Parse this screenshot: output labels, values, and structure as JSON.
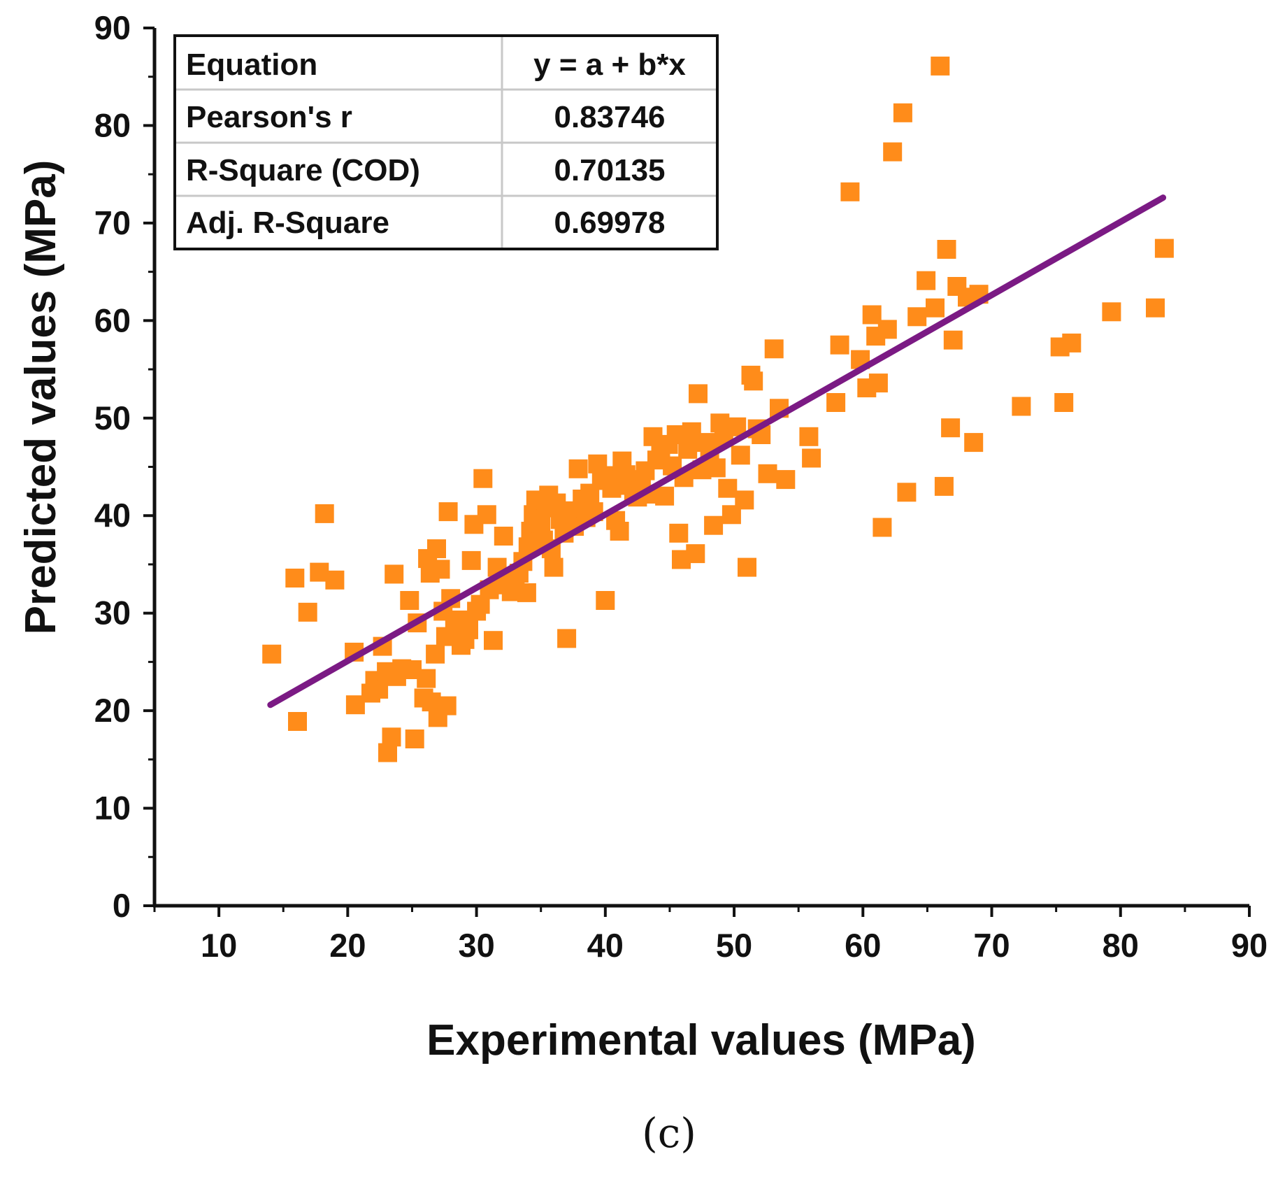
{
  "chart_data": {
    "type": "scatter",
    "xlabel": "Experimental values (MPa)",
    "ylabel": "Predicted values (MPa)",
    "xlim": [
      5,
      90
    ],
    "ylim": [
      0,
      90
    ],
    "xticks": [
      10,
      20,
      30,
      40,
      50,
      60,
      70,
      80,
      90
    ],
    "yticks": [
      0,
      10,
      20,
      30,
      40,
      50,
      60,
      70,
      80,
      90
    ],
    "panel_label": "(c)",
    "colors": {
      "points": "#ff8c1a",
      "fit_line": "#7b1a84",
      "axis": "#111111"
    },
    "fit_line": {
      "name": "Linear fit",
      "x": [
        14,
        83.3
      ],
      "y": [
        20.6,
        72.6
      ]
    },
    "stats_table": {
      "rows": [
        {
          "label": "Equation",
          "value": "y = a + b*x"
        },
        {
          "label": "Pearson's r",
          "value": "0.83746"
        },
        {
          "label": "R-Square (COD)",
          "value": "0.70135"
        },
        {
          "label": "Adj. R-Square",
          "value": "0.69978"
        }
      ]
    },
    "series": [
      {
        "name": "Data points",
        "marker": "square",
        "points": [
          [
            14.1,
            25.8
          ],
          [
            15.9,
            33.6
          ],
          [
            16.1,
            18.9
          ],
          [
            16.9,
            30.1
          ],
          [
            17.8,
            34.2
          ],
          [
            18.2,
            40.2
          ],
          [
            19.0,
            33.4
          ],
          [
            20.5,
            26.0
          ],
          [
            20.6,
            20.6
          ],
          [
            21.8,
            21.8
          ],
          [
            22.1,
            23.1
          ],
          [
            22.4,
            22.2
          ],
          [
            22.7,
            26.6
          ],
          [
            23.0,
            24.0
          ],
          [
            23.1,
            15.7
          ],
          [
            23.4,
            17.3
          ],
          [
            23.6,
            34.0
          ],
          [
            23.8,
            23.5
          ],
          [
            24.2,
            24.3
          ],
          [
            24.8,
            31.3
          ],
          [
            25.0,
            24.2
          ],
          [
            25.2,
            17.1
          ],
          [
            25.4,
            29.0
          ],
          [
            25.9,
            21.3
          ],
          [
            26.1,
            23.3
          ],
          [
            26.2,
            35.6
          ],
          [
            26.4,
            34.1
          ],
          [
            26.5,
            20.9
          ],
          [
            26.8,
            25.8
          ],
          [
            26.9,
            36.6
          ],
          [
            27.0,
            19.3
          ],
          [
            27.2,
            34.5
          ],
          [
            27.4,
            30.2
          ],
          [
            27.6,
            27.6
          ],
          [
            27.7,
            20.5
          ],
          [
            27.8,
            40.4
          ],
          [
            28.0,
            31.5
          ],
          [
            28.3,
            28.6
          ],
          [
            28.6,
            29.3
          ],
          [
            28.8,
            26.7
          ],
          [
            29.1,
            27.3
          ],
          [
            29.4,
            28.3
          ],
          [
            29.6,
            35.4
          ],
          [
            29.8,
            39.1
          ],
          [
            30.0,
            30.2
          ],
          [
            30.3,
            30.9
          ],
          [
            30.5,
            43.8
          ],
          [
            30.8,
            40.1
          ],
          [
            31.0,
            32.4
          ],
          [
            31.3,
            27.2
          ],
          [
            31.6,
            34.7
          ],
          [
            31.8,
            33.2
          ],
          [
            32.1,
            37.9
          ],
          [
            32.4,
            32.9
          ],
          [
            32.7,
            32.2
          ],
          [
            33.0,
            33.4
          ],
          [
            33.3,
            34.1
          ],
          [
            33.6,
            35.3
          ],
          [
            33.9,
            32.1
          ],
          [
            34.0,
            36.8
          ],
          [
            34.2,
            38.4
          ],
          [
            34.4,
            40.1
          ],
          [
            34.6,
            41.6
          ],
          [
            34.8,
            38.0
          ],
          [
            35.0,
            39.2
          ],
          [
            35.2,
            37.5
          ],
          [
            35.4,
            40.8
          ],
          [
            35.6,
            42.1
          ],
          [
            35.8,
            36.6
          ],
          [
            36.0,
            34.7
          ],
          [
            36.2,
            41.3
          ],
          [
            36.5,
            39.6
          ],
          [
            36.8,
            38.2
          ],
          [
            37.0,
            27.4
          ],
          [
            37.3,
            40.5
          ],
          [
            37.6,
            38.9
          ],
          [
            37.9,
            44.8
          ],
          [
            38.2,
            41.7
          ],
          [
            38.5,
            39.8
          ],
          [
            38.8,
            42.3
          ],
          [
            39.1,
            40.4
          ],
          [
            39.4,
            45.3
          ],
          [
            39.7,
            43.6
          ],
          [
            40.0,
            31.3
          ],
          [
            40.2,
            44.1
          ],
          [
            40.5,
            42.8
          ],
          [
            40.8,
            39.5
          ],
          [
            41.1,
            38.4
          ],
          [
            41.3,
            45.6
          ],
          [
            41.6,
            44.2
          ],
          [
            41.9,
            43.1
          ],
          [
            42.2,
            42.5
          ],
          [
            42.5,
            41.9
          ],
          [
            42.8,
            43.7
          ],
          [
            43.1,
            44.6
          ],
          [
            43.4,
            42.2
          ],
          [
            43.7,
            48.1
          ],
          [
            44.0,
            45.7
          ],
          [
            44.3,
            46.2
          ],
          [
            44.6,
            42.0
          ],
          [
            44.9,
            47.3
          ],
          [
            45.2,
            45.1
          ],
          [
            45.5,
            48.3
          ],
          [
            45.7,
            38.2
          ],
          [
            45.9,
            35.5
          ],
          [
            46.1,
            43.9
          ],
          [
            46.4,
            46.8
          ],
          [
            46.7,
            48.6
          ],
          [
            47.0,
            36.1
          ],
          [
            47.2,
            52.5
          ],
          [
            47.5,
            44.7
          ],
          [
            47.8,
            47.5
          ],
          [
            48.1,
            46.1
          ],
          [
            48.4,
            39.0
          ],
          [
            48.6,
            44.9
          ],
          [
            48.9,
            49.5
          ],
          [
            49.2,
            48.0
          ],
          [
            49.5,
            42.8
          ],
          [
            49.8,
            40.1
          ],
          [
            50.2,
            49.1
          ],
          [
            50.5,
            46.2
          ],
          [
            50.8,
            41.6
          ],
          [
            51.0,
            34.7
          ],
          [
            51.3,
            54.4
          ],
          [
            51.5,
            53.8
          ],
          [
            51.8,
            48.9
          ],
          [
            52.1,
            48.3
          ],
          [
            52.6,
            44.3
          ],
          [
            53.1,
            57.1
          ],
          [
            53.5,
            51.0
          ],
          [
            54.0,
            43.7
          ],
          [
            55.8,
            48.1
          ],
          [
            56.0,
            45.9
          ],
          [
            57.9,
            51.6
          ],
          [
            58.2,
            57.5
          ],
          [
            59.0,
            73.2
          ],
          [
            59.8,
            56.0
          ],
          [
            60.3,
            53.1
          ],
          [
            60.7,
            60.6
          ],
          [
            61.0,
            58.4
          ],
          [
            61.2,
            53.6
          ],
          [
            61.5,
            38.8
          ],
          [
            61.9,
            59.1
          ],
          [
            62.3,
            77.3
          ],
          [
            63.1,
            81.3
          ],
          [
            63.4,
            42.4
          ],
          [
            64.2,
            60.4
          ],
          [
            64.9,
            64.1
          ],
          [
            65.6,
            61.3
          ],
          [
            66.0,
            86.1
          ],
          [
            66.3,
            43.0
          ],
          [
            66.5,
            67.3
          ],
          [
            66.8,
            49.0
          ],
          [
            67.0,
            58.0
          ],
          [
            67.3,
            63.5
          ],
          [
            68.1,
            62.4
          ],
          [
            68.6,
            47.5
          ],
          [
            69.0,
            62.7
          ],
          [
            72.3,
            51.2
          ],
          [
            75.3,
            57.3
          ],
          [
            75.6,
            51.6
          ],
          [
            76.2,
            57.7
          ],
          [
            79.3,
            60.9
          ],
          [
            82.7,
            61.3
          ],
          [
            83.4,
            67.4
          ]
        ]
      }
    ]
  }
}
